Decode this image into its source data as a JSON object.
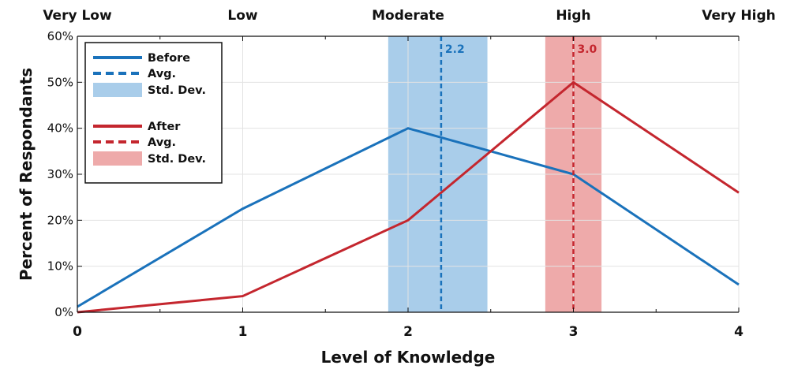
{
  "chart_data": {
    "type": "line",
    "title": "",
    "xlabel": "Level of Knowledge",
    "ylabel": "Percent of Respondants",
    "x": [
      0,
      1,
      2,
      3,
      4
    ],
    "x_tick_labels": [
      "0",
      "1",
      "2",
      "3",
      "4"
    ],
    "top_labels": [
      "Very Low",
      "Low",
      "Moderate",
      "High",
      "Very High"
    ],
    "xlim": [
      0,
      4
    ],
    "ylim": [
      0,
      60
    ],
    "y_ticks": [
      0,
      10,
      20,
      30,
      40,
      50,
      60
    ],
    "y_tick_labels": [
      "0%",
      "10%",
      "20%",
      "30%",
      "40%",
      "50%",
      "60%"
    ],
    "grid": true,
    "legend_position": "top-left",
    "series": [
      {
        "name": "Before",
        "values": [
          1.2,
          22.5,
          40,
          30,
          6
        ],
        "color": "#1a72bb",
        "avg": 2.2,
        "avg_label": "2.2",
        "avg_legend": "Avg.",
        "std_range": [
          1.88,
          2.48
        ],
        "std_legend": "Std. Dev.",
        "std_color": "#a9cdea"
      },
      {
        "name": "After",
        "values": [
          0,
          3.5,
          20,
          50,
          26
        ],
        "color": "#c4262e",
        "avg": 3.0,
        "avg_label": "3.0",
        "avg_legend": "Avg.",
        "std_range": [
          2.83,
          3.17
        ],
        "std_legend": "Std. Dev.",
        "std_color": "#eeaaaa"
      }
    ]
  }
}
